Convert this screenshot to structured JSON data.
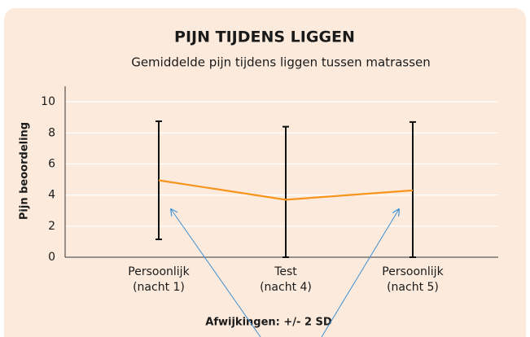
{
  "chart_data": {
    "type": "line",
    "title": "PIJN TIJDENS LIGGEN",
    "subtitle": "Gemiddelde pijn tijdens liggen tussen matrassen",
    "y_label": "Pijn beoordeling",
    "annotation": "Afwijkingen: +/- 2 SD",
    "categories": [
      [
        "Persoonlijk",
        "(nacht 1)"
      ],
      [
        "Test",
        "(nacht 4)"
      ],
      [
        "Persoonlijk",
        "(nacht 5)"
      ]
    ],
    "series": [
      {
        "name": "Gemiddelde",
        "color": "#f7941d",
        "values": [
          4.95,
          3.7,
          4.3
        ],
        "errors": [
          3.8,
          4.7,
          4.4
        ]
      }
    ],
    "ylim": [
      0,
      11
    ],
    "yticks": [
      0,
      2,
      4,
      6,
      8,
      10
    ],
    "grid": true
  }
}
